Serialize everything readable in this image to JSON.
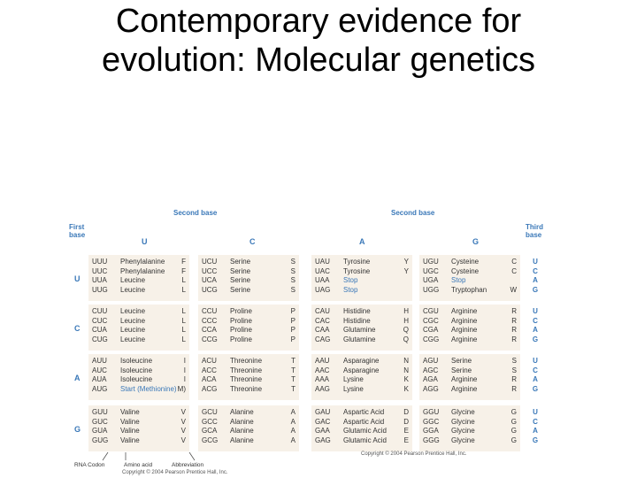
{
  "slide": {
    "title_line1": "Contemporary evidence for",
    "title_line2": "evolution: Molecular genetics"
  },
  "figure": {
    "second_base_left": "Second base",
    "second_base_right": "Second base",
    "first_base_line1": "First",
    "first_base_line2": "base",
    "third_base_line1": "Third",
    "third_base_line2": "base",
    "col_U": "U",
    "col_C": "C",
    "col_A": "A",
    "col_G": "G",
    "row_U": "U",
    "row_C": "C",
    "row_A": "A",
    "row_G": "G",
    "third_letters": [
      "U",
      "C",
      "A",
      "G"
    ],
    "foot_rna": "RNA Codon",
    "foot_aa": "Amino acid",
    "foot_abbr": "Abbreviation",
    "copyright_bottom": "Copyright © 2004 Pearson Prentice Hall, Inc.",
    "copyright_right": "Copyright © 2004 Pearson Prentice Hall, Inc.",
    "rows": [
      [
        [
          [
            "UUU",
            "Phenylalanine",
            "F"
          ],
          [
            "UUC",
            "Phenylalanine",
            "F"
          ],
          [
            "UUA",
            "Leucine",
            "L"
          ],
          [
            "UUG",
            "Leucine",
            "L"
          ]
        ],
        [
          [
            "UCU",
            "Serine",
            "S"
          ],
          [
            "UCC",
            "Serine",
            "S"
          ],
          [
            "UCA",
            "Serine",
            "S"
          ],
          [
            "UCG",
            "Serine",
            "S"
          ]
        ],
        [
          [
            "UAU",
            "Tyrosine",
            "Y"
          ],
          [
            "UAC",
            "Tyrosine",
            "Y"
          ],
          [
            "UAA",
            "Stop",
            ""
          ],
          [
            "UAG",
            "Stop",
            ""
          ]
        ],
        [
          [
            "UGU",
            "Cysteine",
            "C"
          ],
          [
            "UGC",
            "Cysteine",
            "C"
          ],
          [
            "UGA",
            "Stop",
            ""
          ],
          [
            "UGG",
            "Tryptophan",
            "W"
          ]
        ]
      ],
      [
        [
          [
            "CUU",
            "Leucine",
            "L"
          ],
          [
            "CUC",
            "Leucine",
            "L"
          ],
          [
            "CUA",
            "Leucine",
            "L"
          ],
          [
            "CUG",
            "Leucine",
            "L"
          ]
        ],
        [
          [
            "CCU",
            "Proline",
            "P"
          ],
          [
            "CCC",
            "Proline",
            "P"
          ],
          [
            "CCA",
            "Proline",
            "P"
          ],
          [
            "CCG",
            "Proline",
            "P"
          ]
        ],
        [
          [
            "CAU",
            "Histidine",
            "H"
          ],
          [
            "CAC",
            "Histidine",
            "H"
          ],
          [
            "CAA",
            "Glutamine",
            "Q"
          ],
          [
            "CAG",
            "Glutamine",
            "Q"
          ]
        ],
        [
          [
            "CGU",
            "Arginine",
            "R"
          ],
          [
            "CGC",
            "Arginine",
            "R"
          ],
          [
            "CGA",
            "Arginine",
            "R"
          ],
          [
            "CGG",
            "Arginine",
            "R"
          ]
        ]
      ],
      [
        [
          [
            "AUU",
            "Isoleucine",
            "I"
          ],
          [
            "AUC",
            "Isoleucine",
            "I"
          ],
          [
            "AUA",
            "Isoleucine",
            "I"
          ],
          [
            "AUG",
            "Start (Methionine)",
            "M)"
          ]
        ],
        [
          [
            "ACU",
            "Threonine",
            "T"
          ],
          [
            "ACC",
            "Threonine",
            "T"
          ],
          [
            "ACA",
            "Threonine",
            "T"
          ],
          [
            "ACG",
            "Threonine",
            "T"
          ]
        ],
        [
          [
            "AAU",
            "Asparagine",
            "N"
          ],
          [
            "AAC",
            "Asparagine",
            "N"
          ],
          [
            "AAA",
            "Lysine",
            "K"
          ],
          [
            "AAG",
            "Lysine",
            "K"
          ]
        ],
        [
          [
            "AGU",
            "Serine",
            "S"
          ],
          [
            "AGC",
            "Serine",
            "S"
          ],
          [
            "AGA",
            "Arginine",
            "R"
          ],
          [
            "AGG",
            "Arginine",
            "R"
          ]
        ]
      ],
      [
        [
          [
            "GUU",
            "Valine",
            "V"
          ],
          [
            "GUC",
            "Valine",
            "V"
          ],
          [
            "GUA",
            "Valine",
            "V"
          ],
          [
            "GUG",
            "Valine",
            "V"
          ]
        ],
        [
          [
            "GCU",
            "Alanine",
            "A"
          ],
          [
            "GCC",
            "Alanine",
            "A"
          ],
          [
            "GCA",
            "Alanine",
            "A"
          ],
          [
            "GCG",
            "Alanine",
            "A"
          ]
        ],
        [
          [
            "GAU",
            "Aspartic Acid",
            "D"
          ],
          [
            "GAC",
            "Aspartic Acid",
            "D"
          ],
          [
            "GAA",
            "Glutamic Acid",
            "E"
          ],
          [
            "GAG",
            "Glutamic Acid",
            "E"
          ]
        ],
        [
          [
            "GGU",
            "Glycine",
            "G"
          ],
          [
            "GGC",
            "Glycine",
            "G"
          ],
          [
            "GGA",
            "Glycine",
            "G"
          ],
          [
            "GGG",
            "Glycine",
            "G"
          ]
        ]
      ]
    ]
  }
}
